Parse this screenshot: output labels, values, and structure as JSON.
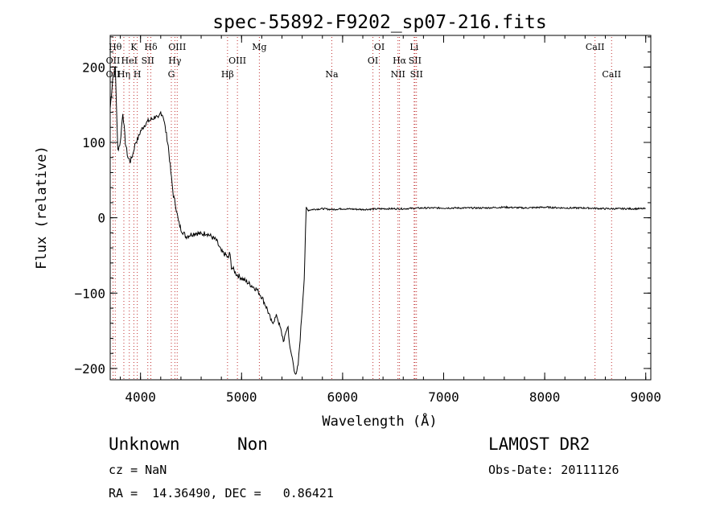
{
  "chart_data": {
    "type": "line",
    "title": "spec-55892-F9202_sp07-216.fits",
    "xlabel": "Wavelength (Å)",
    "ylabel": "Flux (relative)",
    "xlim": [
      3700,
      9050
    ],
    "ylim": [
      -215,
      242
    ],
    "xticks": [
      4000,
      5000,
      6000,
      7000,
      8000,
      9000
    ],
    "yticks": [
      -200,
      -100,
      0,
      100,
      200
    ],
    "ytick_labels": [
      "−200",
      "−100",
      "0",
      "100",
      "200"
    ],
    "grid": false,
    "series": [
      {
        "x": [
          3700,
          3725,
          3750,
          3775,
          3800,
          3825,
          3850,
          3875,
          3900,
          3925,
          3950,
          3975,
          4000,
          4025,
          4050,
          4075,
          4100,
          4125,
          4150,
          4175,
          4200,
          4225,
          4250,
          4275,
          4300,
          4325,
          4350,
          4375,
          4400,
          4425,
          4450,
          4500,
          4550,
          4600,
          4650,
          4700,
          4750,
          4800,
          4850,
          4870,
          4880,
          4900,
          4950,
          5000,
          5050,
          5100,
          5150,
          5200,
          5250,
          5300,
          5350,
          5380,
          5400,
          5420,
          5440,
          5460,
          5480,
          5500,
          5520,
          5540,
          5560,
          5580,
          5600,
          5620,
          5640,
          5660,
          5700,
          5800,
          5900,
          6000,
          6200,
          6400,
          6600,
          6800,
          7000,
          7200,
          7400,
          7600,
          7800,
          8000,
          8200,
          8400,
          8600,
          8800,
          9000
        ],
        "y": [
          145,
          185,
          200,
          90,
          100,
          140,
          100,
          80,
          75,
          85,
          100,
          105,
          115,
          120,
          125,
          128,
          130,
          132,
          135,
          130,
          140,
          135,
          115,
          95,
          60,
          30,
          15,
          -5,
          -15,
          -20,
          -25,
          -22,
          -20,
          -22,
          -20,
          -25,
          -30,
          -45,
          -50,
          -55,
          -45,
          -65,
          -75,
          -80,
          -85,
          -90,
          -95,
          -105,
          -120,
          -140,
          -130,
          -145,
          -155,
          -165,
          -150,
          -145,
          -175,
          -185,
          -200,
          -210,
          -195,
          -160,
          -120,
          -80,
          12,
          10,
          11,
          12,
          11,
          12,
          11,
          12,
          12,
          13,
          13,
          13,
          13,
          14,
          13,
          14,
          13,
          13,
          12,
          12,
          12
        ]
      }
    ],
    "lines": [
      {
        "wl": 3750,
        "row": 0,
        "label": "Hθ"
      },
      {
        "wl": 3728,
        "row": 1,
        "label": "OII"
      },
      {
        "wl": 3728,
        "row": 2,
        "label": "OII"
      },
      {
        "wl": 3835,
        "row": 2,
        "label": "Hη"
      },
      {
        "wl": 3889,
        "row": 1,
        "label": "HeI"
      },
      {
        "wl": 3934,
        "row": 0,
        "label": "K"
      },
      {
        "wl": 3968,
        "row": 2,
        "label": "H"
      },
      {
        "wl": 4072,
        "row": 1,
        "label": "SII"
      },
      {
        "wl": 4102,
        "row": 0,
        "label": "Hδ"
      },
      {
        "wl": 4305,
        "row": 2,
        "label": "G"
      },
      {
        "wl": 4340,
        "row": 1,
        "label": "Hγ"
      },
      {
        "wl": 4363,
        "row": 0,
        "label": "OIII"
      },
      {
        "wl": 4861,
        "row": 2,
        "label": "Hβ"
      },
      {
        "wl": 4959,
        "row": 1,
        "label": "OIII"
      },
      {
        "wl": 5176,
        "row": 0,
        "label": "Mg"
      },
      {
        "wl": 5893,
        "row": 2,
        "label": "Na"
      },
      {
        "wl": 6300,
        "row": 1,
        "label": "OI"
      },
      {
        "wl": 6363,
        "row": 0,
        "label": "OI"
      },
      {
        "wl": 6563,
        "row": 1,
        "label": "Hα"
      },
      {
        "wl": 6548,
        "row": 2,
        "label": "NII"
      },
      {
        "wl": 6708,
        "row": 0,
        "label": "Li"
      },
      {
        "wl": 6716,
        "row": 1,
        "label": "SII"
      },
      {
        "wl": 6731,
        "row": 2,
        "label": "SII"
      },
      {
        "wl": 8498,
        "row": 0,
        "label": "CaII"
      },
      {
        "wl": 8662,
        "row": 2,
        "label": "CaII"
      }
    ]
  },
  "info": {
    "class": "Unknown",
    "subclass": "Non",
    "survey": "LAMOST DR2",
    "cz": "cz = NaN",
    "obs_date": "Obs-Date: 20111126",
    "radec": "RA =  14.36490, DEC =   0.86421"
  }
}
